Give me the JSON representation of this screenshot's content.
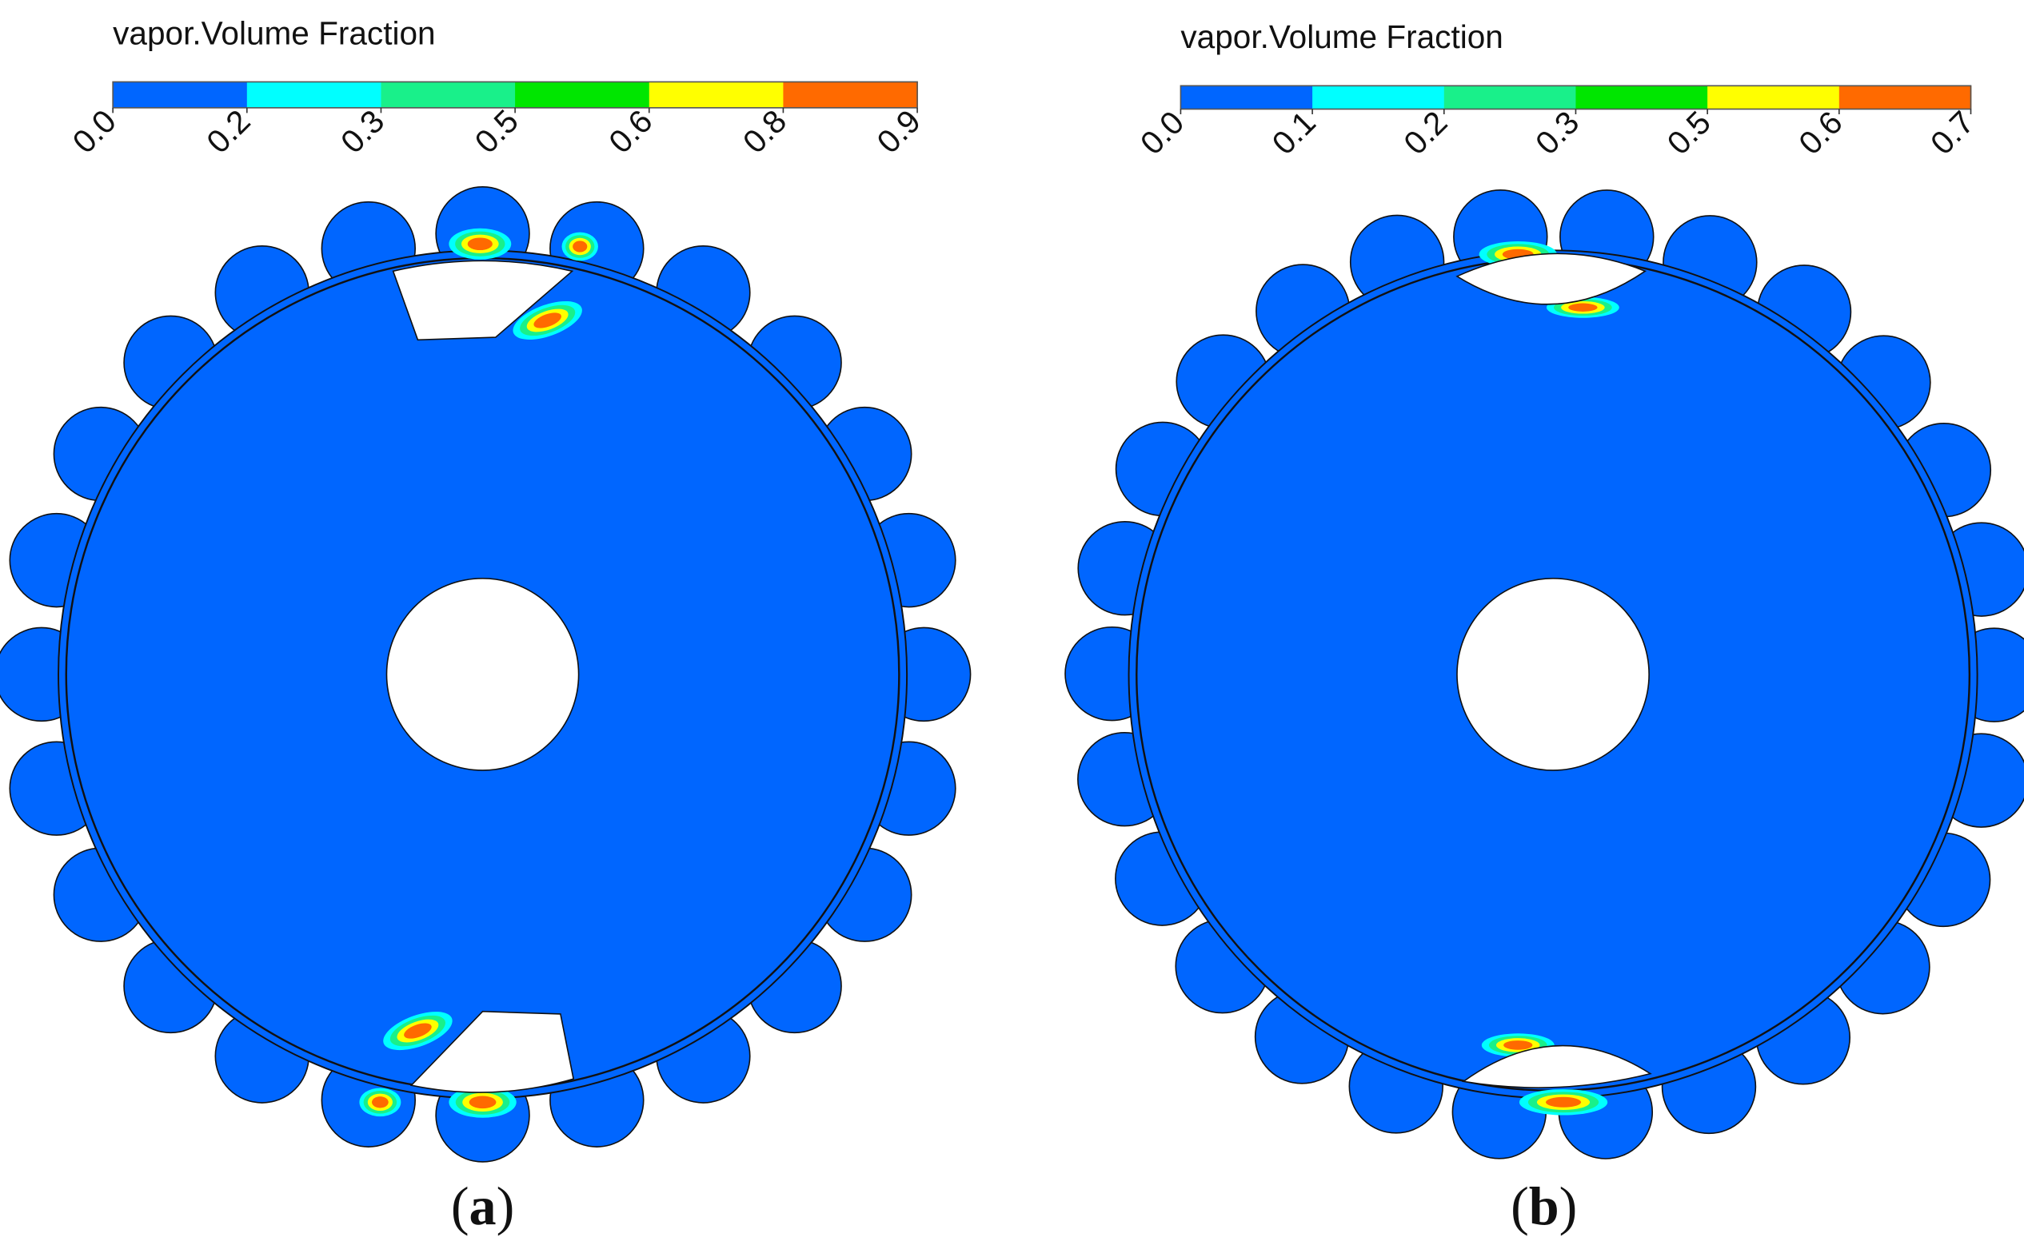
{
  "panels": [
    {
      "label_open": "(",
      "label": "a",
      "label_close": ")",
      "colorbar": {
        "title": "vapor.Volume Fraction",
        "ticks": [
          "0.0",
          "0.2",
          "0.3",
          "0.5",
          "0.6",
          "0.8",
          "0.9"
        ],
        "colors": [
          "#0066ff",
          "#00ffff",
          "#19f08a",
          "#00e600",
          "#ffff00",
          "#ff6a00"
        ]
      }
    },
    {
      "label_open": "(",
      "label": "b",
      "label_close": ")",
      "colorbar": {
        "title": "vapor.Volume Fraction",
        "ticks": [
          "0.0",
          "0.1",
          "0.2",
          "0.3",
          "0.5",
          "0.6",
          "0.7"
        ],
        "colors": [
          "#0066ff",
          "#00ffff",
          "#19f08a",
          "#00e600",
          "#ffff00",
          "#ff6a00"
        ]
      }
    }
  ]
}
